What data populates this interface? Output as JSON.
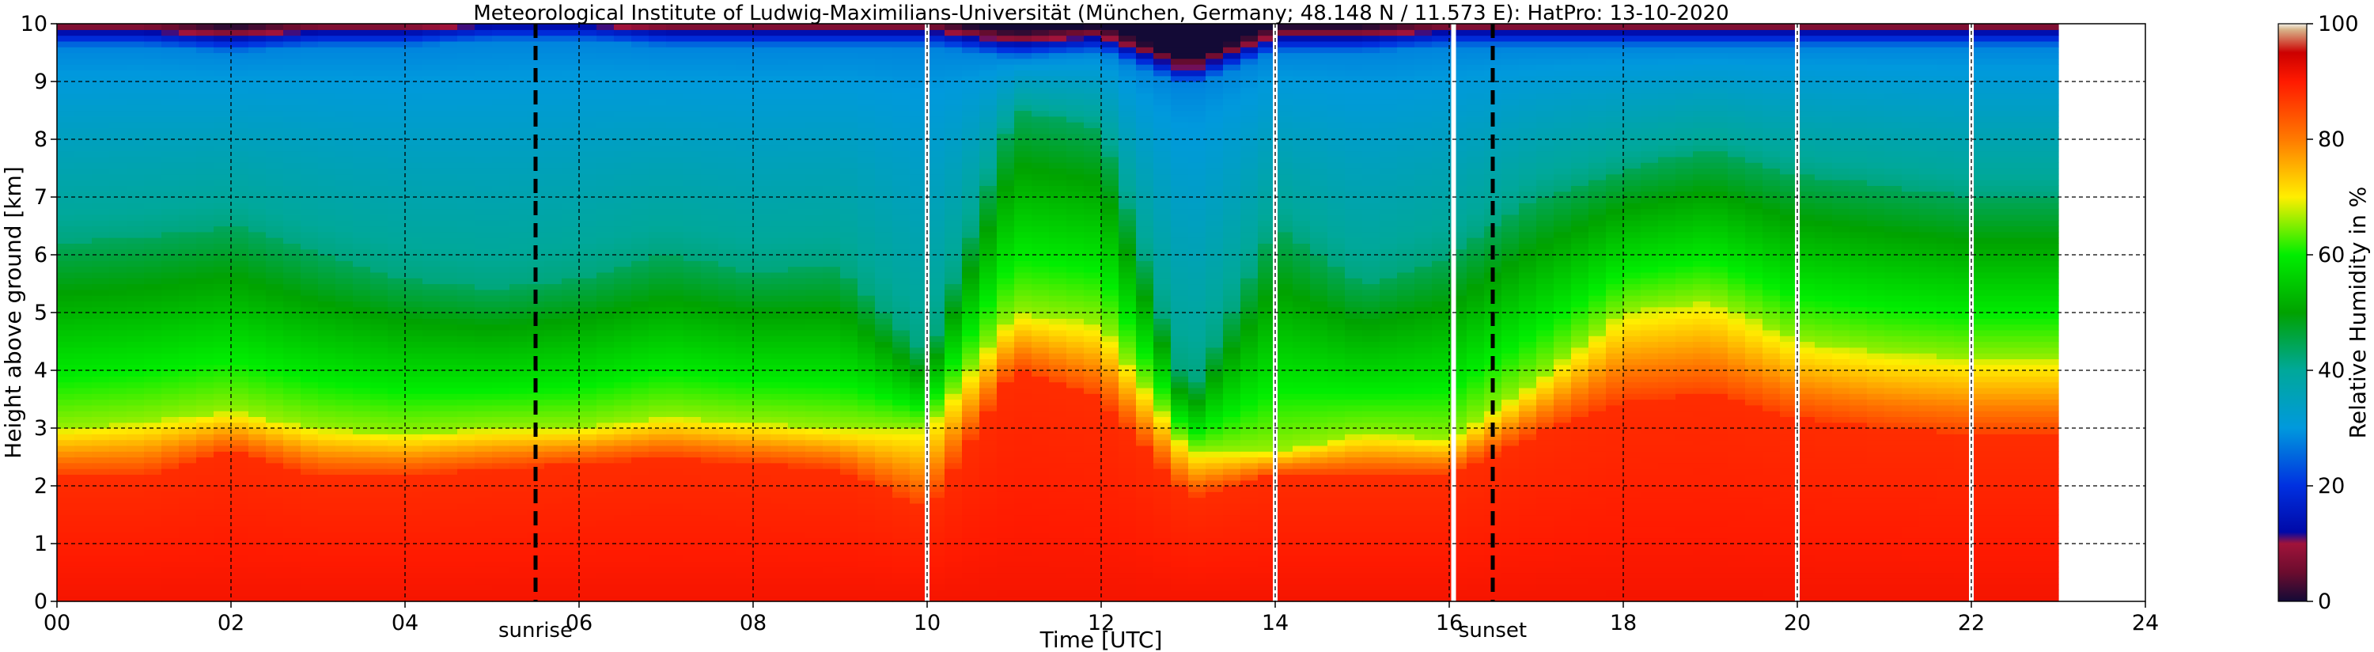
{
  "chart_data": {
    "type": "heatmap",
    "title": "Meteorological Institute of Ludwig-Maximilians-Universität (München, Germany; 48.148 N / 11.573 E):    HatPro: 13-10-2020",
    "xlabel": "Time [UTC]",
    "ylabel": "Height above ground [km]",
    "colorbar_label": "Relative Humidity in %",
    "xlim": [
      0,
      24
    ],
    "ylim": [
      0,
      10
    ],
    "x_ticks": [
      "00",
      "02",
      "04",
      "06",
      "08",
      "10",
      "12",
      "14",
      "16",
      "18",
      "20",
      "22",
      "24"
    ],
    "y_ticks": [
      "0",
      "1",
      "2",
      "3",
      "4",
      "5",
      "6",
      "7",
      "8",
      "9",
      "10"
    ],
    "colorbar_ticks": [
      "0",
      "20",
      "40",
      "60",
      "80",
      "100"
    ],
    "colorbar_range": [
      0,
      100
    ],
    "grid": true,
    "data_end_hour": 23.0,
    "gaps_hours": [
      10.0,
      14.0,
      16.05,
      20.0,
      22.0
    ],
    "events": [
      {
        "label": "sunrise",
        "hour": 5.5
      },
      {
        "label": "sunset",
        "hour": 16.5
      }
    ],
    "rh_profiles": [
      {
        "hour": 0.0,
        "h_red": 2.2,
        "h_yellow": 3.0,
        "h_green": 6.2,
        "top_dry": 9.6
      },
      {
        "hour": 1.0,
        "h_red": 2.2,
        "h_yellow": 3.1,
        "h_green": 6.3,
        "top_dry": 9.6
      },
      {
        "hour": 2.0,
        "h_red": 2.6,
        "h_yellow": 3.3,
        "h_green": 6.5,
        "top_dry": 9.5
      },
      {
        "hour": 3.0,
        "h_red": 2.2,
        "h_yellow": 3.0,
        "h_green": 6.0,
        "top_dry": 9.6
      },
      {
        "hour": 4.0,
        "h_red": 2.2,
        "h_yellow": 2.9,
        "h_green": 5.6,
        "top_dry": 9.6
      },
      {
        "hour": 5.0,
        "h_red": 2.3,
        "h_yellow": 3.0,
        "h_green": 5.4,
        "top_dry": 9.7
      },
      {
        "hour": 6.0,
        "h_red": 2.4,
        "h_yellow": 3.0,
        "h_green": 5.6,
        "top_dry": 9.7
      },
      {
        "hour": 7.0,
        "h_red": 2.5,
        "h_yellow": 3.2,
        "h_green": 6.0,
        "top_dry": 9.6
      },
      {
        "hour": 8.0,
        "h_red": 2.4,
        "h_yellow": 3.1,
        "h_green": 5.7,
        "top_dry": 9.6
      },
      {
        "hour": 9.0,
        "h_red": 2.3,
        "h_yellow": 3.0,
        "h_green": 5.8,
        "top_dry": 9.6
      },
      {
        "hour": 10.0,
        "h_red": 1.6,
        "h_yellow": 3.0,
        "h_green": 4.2,
        "top_dry": 9.6
      },
      {
        "hour": 11.0,
        "h_red": 4.0,
        "h_yellow": 5.0,
        "h_green": 8.5,
        "top_dry": 9.4
      },
      {
        "hour": 12.0,
        "h_red": 3.5,
        "h_yellow": 4.8,
        "h_green": 8.2,
        "top_dry": 9.5
      },
      {
        "hour": 13.0,
        "h_red": 1.8,
        "h_yellow": 2.6,
        "h_green": 3.5,
        "top_dry": 8.9
      },
      {
        "hour": 14.0,
        "h_red": 2.2,
        "h_yellow": 2.6,
        "h_green": 6.5,
        "top_dry": 9.5
      },
      {
        "hour": 15.0,
        "h_red": 2.2,
        "h_yellow": 2.9,
        "h_green": 5.5,
        "top_dry": 9.5
      },
      {
        "hour": 16.0,
        "h_red": 2.2,
        "h_yellow": 2.8,
        "h_green": 6.0,
        "top_dry": 9.6
      },
      {
        "hour": 17.0,
        "h_red": 2.9,
        "h_yellow": 3.8,
        "h_green": 7.0,
        "top_dry": 9.6
      },
      {
        "hour": 18.0,
        "h_red": 3.5,
        "h_yellow": 5.0,
        "h_green": 7.5,
        "top_dry": 9.6
      },
      {
        "hour": 19.0,
        "h_red": 3.6,
        "h_yellow": 5.2,
        "h_green": 7.8,
        "top_dry": 9.6
      },
      {
        "hour": 20.0,
        "h_red": 3.2,
        "h_yellow": 4.5,
        "h_green": 7.4,
        "top_dry": 9.6
      },
      {
        "hour": 21.0,
        "h_red": 3.0,
        "h_yellow": 4.3,
        "h_green": 7.2,
        "top_dry": 9.6
      },
      {
        "hour": 22.0,
        "h_red": 2.9,
        "h_yellow": 4.2,
        "h_green": 7.0,
        "top_dry": 9.6
      },
      {
        "hour": 23.0,
        "h_red": 2.9,
        "h_yellow": 4.2,
        "h_green": 7.0,
        "top_dry": 9.6
      }
    ]
  },
  "colors": {
    "rh_0": "#130a36",
    "rh_5": "#6b0c2e",
    "rh_10": "#a0133a",
    "rh_12": "#0009a8",
    "rh_20": "#0030e0",
    "rh_30": "#0099dd",
    "rh_40": "#00a89a",
    "rh_50": "#00a200",
    "rh_60": "#00ee00",
    "rh_70": "#ffee00",
    "rh_80": "#ff7a00",
    "rh_90": "#ff1a00",
    "rh_95": "#cc0000",
    "rh_99": "#d8b48a",
    "rh_100": "#f2f0e8"
  }
}
